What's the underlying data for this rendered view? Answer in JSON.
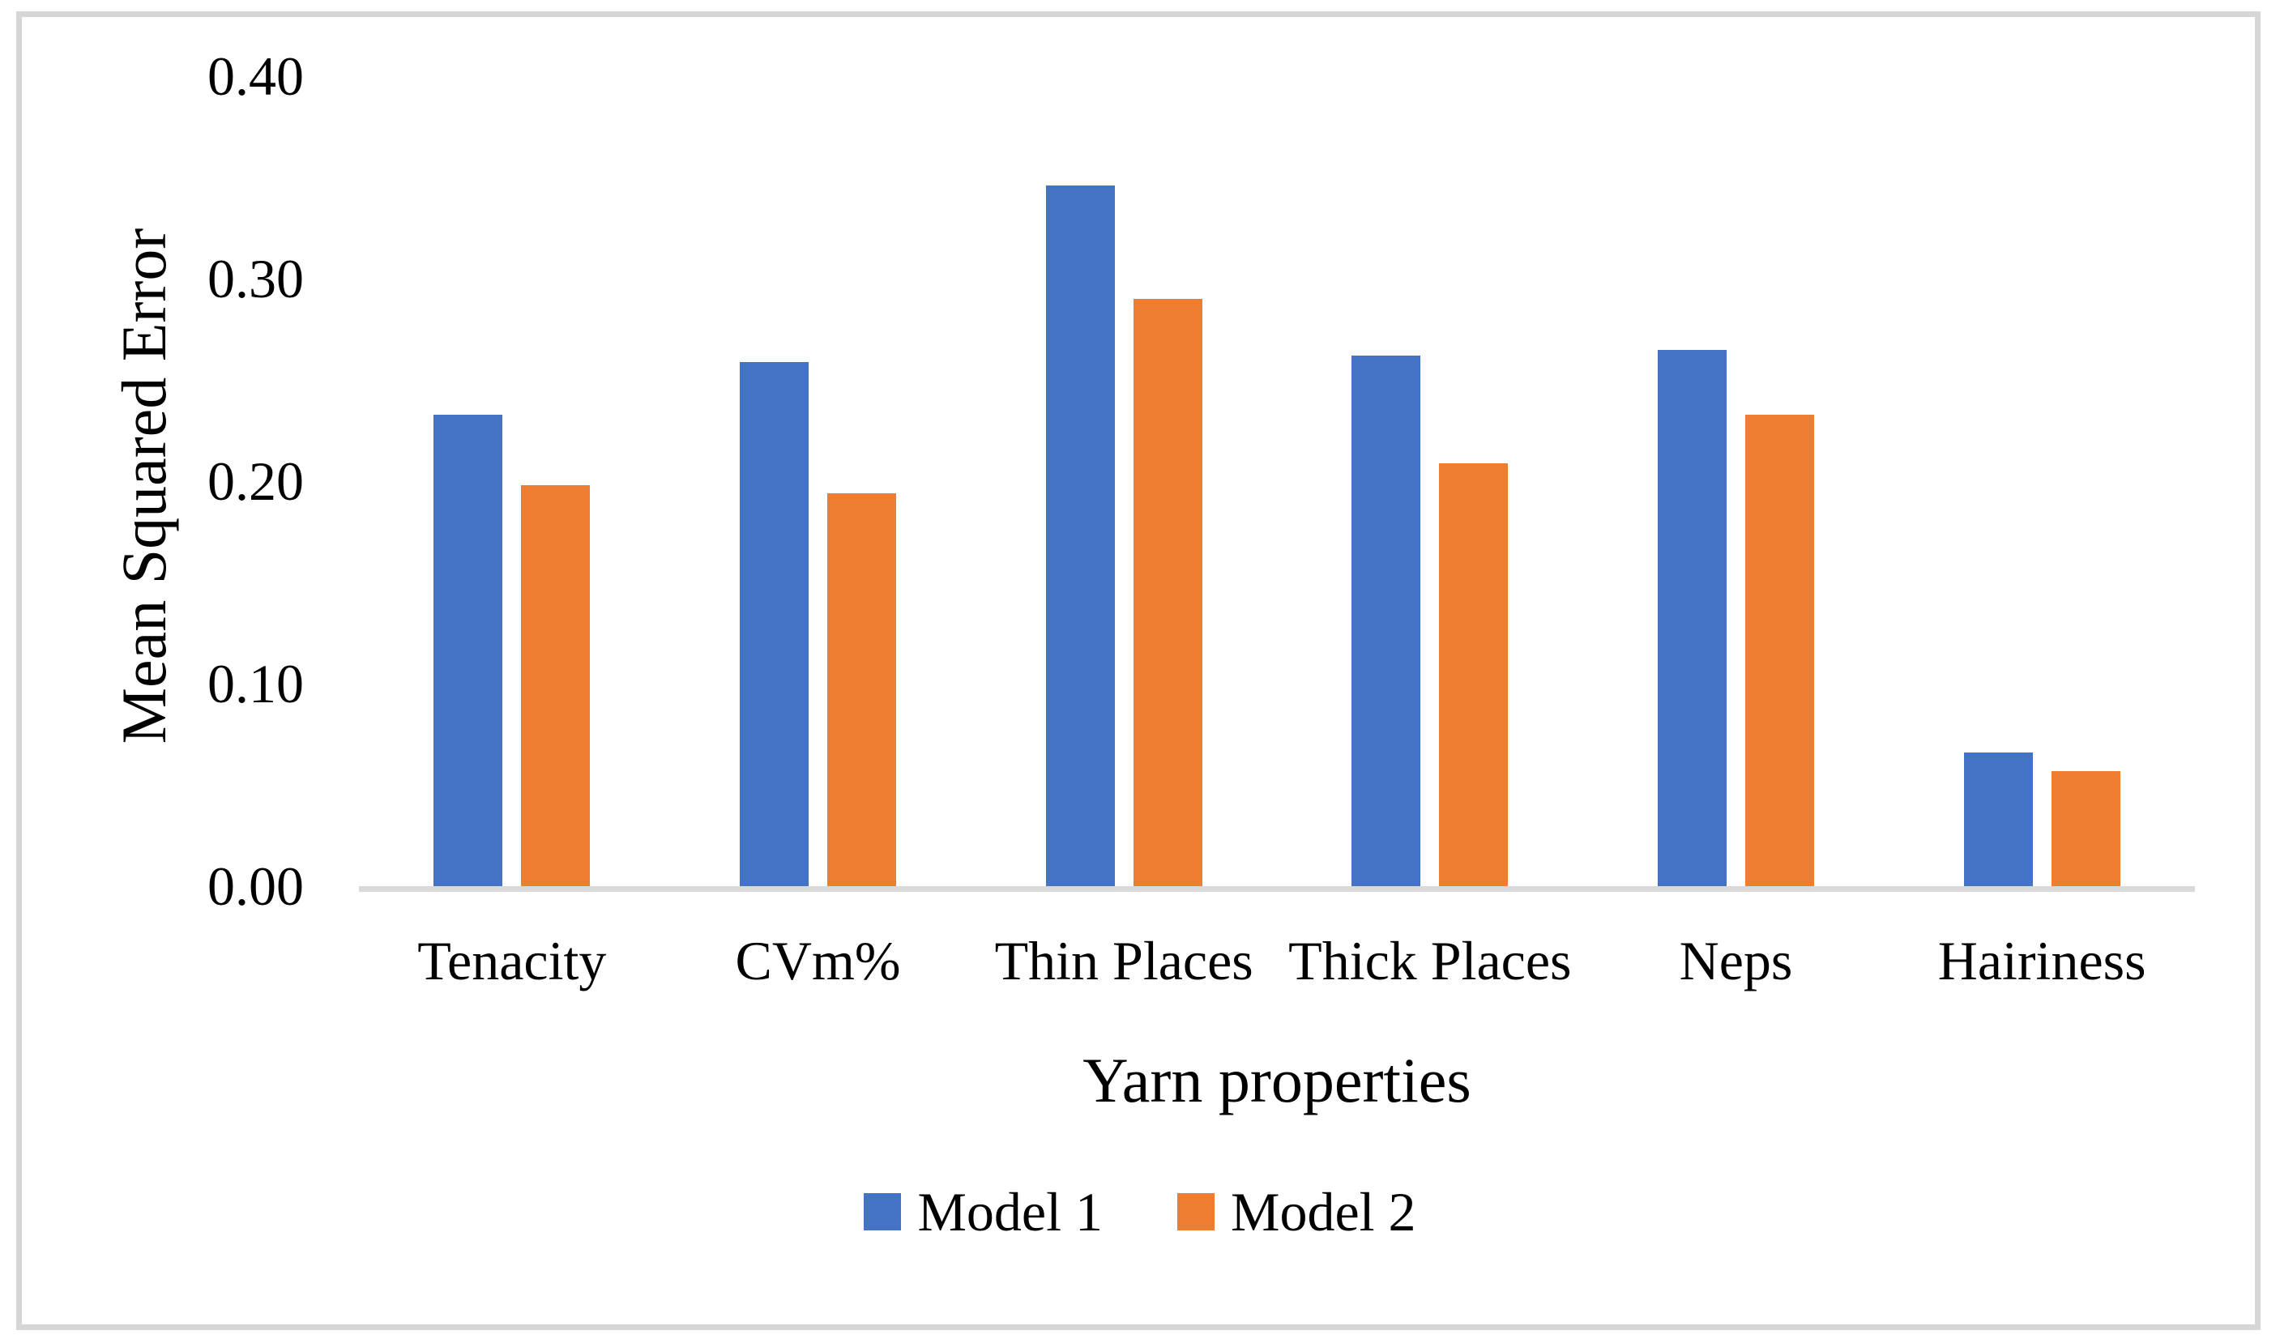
{
  "chart_data": {
    "type": "bar",
    "title": "",
    "categories": [
      "Tenacity",
      "CVm%",
      "Thin Places",
      "Thick Places",
      "Neps",
      "Hairiness"
    ],
    "series": [
      {
        "name": "Model 1",
        "color": "#4472C4",
        "values": [
          0.233,
          0.259,
          0.346,
          0.262,
          0.265,
          0.066
        ]
      },
      {
        "name": "Model 2",
        "color": "#ED7D31",
        "values": [
          0.198,
          0.194,
          0.29,
          0.209,
          0.233,
          0.057
        ]
      }
    ],
    "xlabel": "Yarn properties",
    "ylabel": "Mean Squared Error",
    "ylim": [
      0.0,
      0.4
    ],
    "ytick_step": 0.1,
    "yticks": [
      "0.40",
      "0.30",
      "0.20",
      "0.10",
      "0.00"
    ],
    "grid": false,
    "legend_position": "bottom-center",
    "frame_border_color": "#d6d6d6",
    "axis_line_color": "#d9d9d9"
  }
}
